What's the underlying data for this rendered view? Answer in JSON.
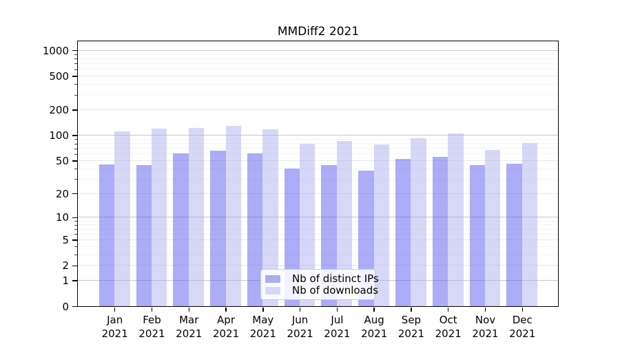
{
  "title": "MMDiff2 2021",
  "colors": {
    "ips_bar": "rgba(79,79,238,0.47)",
    "downloads_bar": "rgba(170,170,238,0.47)",
    "ips_swatch": "#acacf1",
    "downloads_swatch": "#d7d7f7",
    "grid_power10": "#c6c6c6",
    "grid_major": "#e8e8e8",
    "grid_minor": "#f4f4f4"
  },
  "legend": {
    "items": [
      {
        "label": "Nb of distinct IPs",
        "series": "ips"
      },
      {
        "label": "Nb of downloads",
        "series": "downloads"
      }
    ]
  },
  "chart_data": {
    "type": "bar",
    "title": "MMDiff2 2021",
    "categories": [
      "Jan 2021",
      "Feb 2021",
      "Mar 2021",
      "Apr 2021",
      "May 2021",
      "Jun 2021",
      "Jul 2021",
      "Aug 2021",
      "Sep 2021",
      "Oct 2021",
      "Nov 2021",
      "Dec 2021"
    ],
    "series": [
      {
        "name": "Nb of distinct IPs",
        "values": [
          45,
          44,
          61,
          66,
          61,
          40,
          44,
          38,
          52,
          55,
          44,
          46
        ]
      },
      {
        "name": "Nb of downloads",
        "values": [
          112,
          120,
          123,
          129,
          118,
          80,
          86,
          78,
          92,
          105,
          67,
          81
        ]
      }
    ],
    "yscale": "log1p",
    "yticks": [
      0,
      1,
      2,
      5,
      10,
      20,
      50,
      100,
      200,
      500,
      1000
    ],
    "yticks_minor": [
      3,
      4,
      6,
      7,
      8,
      9,
      30,
      40,
      60,
      70,
      80,
      90,
      300,
      400,
      600,
      700,
      800,
      900
    ],
    "y_log_span": 3.107,
    "grid": true,
    "legend_position": "lower center"
  }
}
